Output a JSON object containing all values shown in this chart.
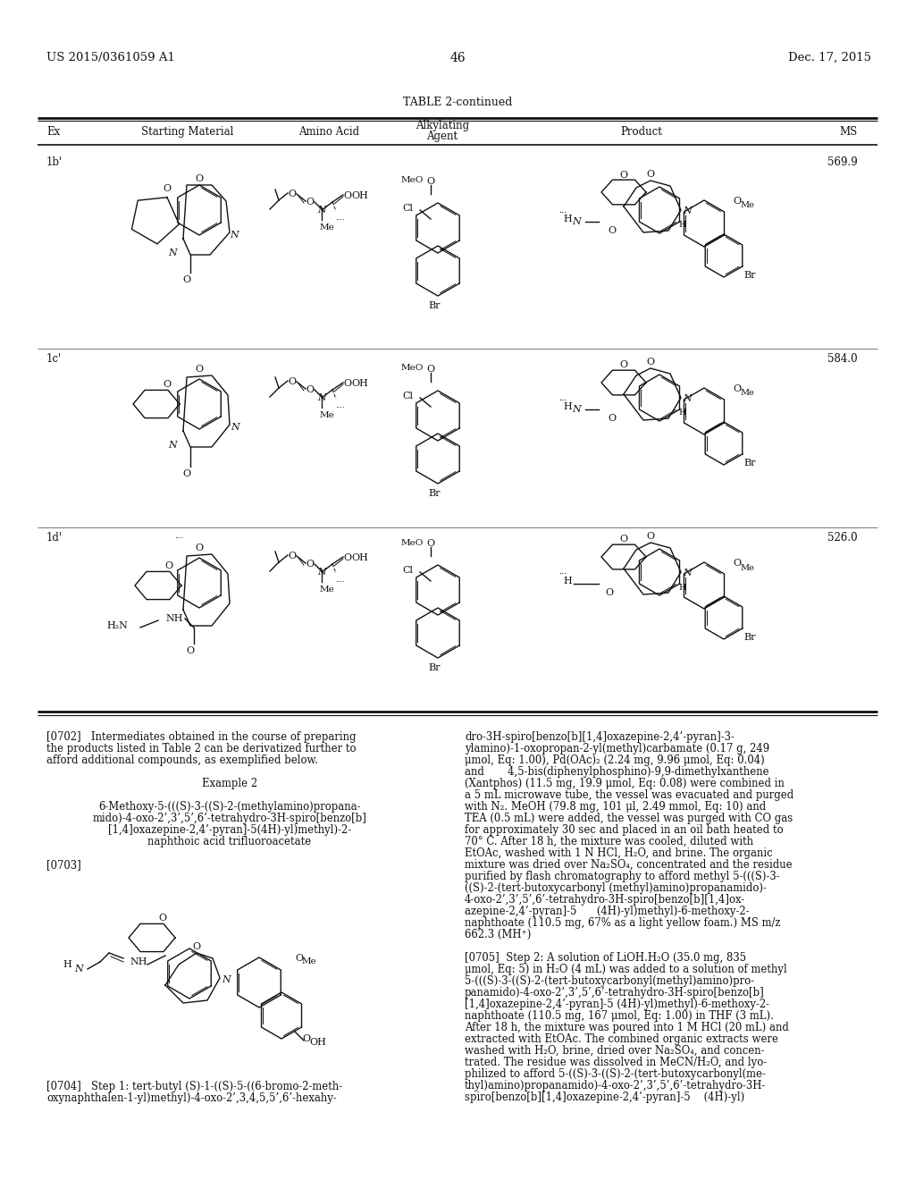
{
  "page_number": "46",
  "patent_number": "US 2015/0361059 A1",
  "patent_date": "Dec. 17, 2015",
  "table_title": "TABLE 2-continued",
  "col_headers": {
    "ex": "Ex",
    "sm": "Starting Material",
    "aa": "Amino Acid",
    "alk_top": "Alkylating",
    "alk_bot": "Agent",
    "prod": "Product",
    "ms": "MS"
  },
  "rows": [
    {
      "ex": "1b'",
      "ms": "569.9"
    },
    {
      "ex": "1c'",
      "ms": "584.0"
    },
    {
      "ex": "1d'",
      "ms": "526.0"
    }
  ],
  "body_left": [
    "[0702]   Intermediates obtained in the course of preparing",
    "the products listed in Table 2 can be derivatized further to",
    "afford additional compounds, as exemplified below.",
    "",
    "Example 2",
    "",
    "6-Methoxy-5-(((S)-3-((S)-2-(methylamino)propana-",
    "mido)-4-oxo-2’,3’,5’,6’-tetrahydro-3H-spiro[benzo[b]",
    "[1,4]oxazepine-2,4’-pyran]-5(4H)-yl)methyl)-2-",
    "naphthoic acid trifluoroacetate",
    "",
    "[0703]"
  ],
  "body_right": [
    "dro-3H-spiro[benzo[b][1,4]oxazepine-2,4’-pyran]-3-",
    "ylamino)-1-oxopropan-2-yl(methyl)carbamate (0.17 g, 249",
    "μmol, Eq: 1.00), Pd(OAc)₂ (2.24 mg, 9.96 μmol, Eq: 0.04)",
    "and       4,5-bis(diphenylphosphino)-9,9-dimethylxanthene",
    "(Xantphos) (11.5 mg, 19.9 μmol, Eq: 0.08) were combined in",
    "a 5 mL microwave tube, the vessel was evacuated and purged",
    "with N₂. MeOH (79.8 mg, 101 μl, 2.49 mmol, Eq: 10) and",
    "TEA (0.5 mL) were added, the vessel was purged with CO gas",
    "for approximately 30 sec and placed in an oil bath heated to",
    "70° C. After 18 h, the mixture was cooled, diluted with",
    "EtOAc, washed with 1 N HCl, H₂O, and brine. The organic",
    "mixture was dried over Na₂SO₄, concentrated and the residue",
    "purified by flash chromatography to afford methyl 5-(((S)-3-",
    "((S)-2-(tert-butoxycarbonyl (methyl)amino)propanamido)-",
    "4-oxo-2’,3’,5’,6’-tetrahydro-3H-spiro[benzo[b][1,4]ox-",
    "azepine-2,4’-pyran]-5      (4H)-yl)methyl)-6-methoxy-2-",
    "naphthoate (110.5 mg, 67% as a light yellow foam.) MS m/z",
    "662.3 (MH⁺)",
    "",
    "[0705]  Step 2: A solution of LiOH.H₂O (35.0 mg, 835",
    "μmol, Eq: 5) in H₂O (4 mL) was added to a solution of methyl",
    "5-(((S)-3-((S)-2-(tert-butoxycarbonyl(methyl)amino)pro-",
    "panamido)-4-oxo-2’,3’,5’,6’-tetrahydro-3H-spiro[benzo[b]",
    "[1,4]oxazepine-2,4’-pyran]-5 (4H)-yl)methyl)-6-methoxy-2-",
    "naphthoate (110.5 mg, 167 μmol, Eq: 1.00) in THF (3 mL).",
    "After 18 h, the mixture was poured into 1 M HCl (20 mL) and",
    "extracted with EtOAc. The combined organic extracts were",
    "washed with H₂O, brine, dried over Na₂SO₄, and concen-",
    "trated. The residue was dissolved in MeCN/H₂O, and lyo-",
    "philized to afford 5-((S)-3-((S)-2-(tert-butoxycarbonyl(me-",
    "thyl)amino)propanamido)-4-oxo-2’,3’,5’,6’-tetrahydro-3H-",
    "spiro[benzo[b][1,4]oxazepine-2,4’-pyran]-5    (4H)-yl)"
  ],
  "caption_0704_lines": [
    "[0704]   Step 1: tert-butyl (S)-1-((S)-5-((6-bromo-2-meth-",
    "oxynaphthalen-1-yl)methyl)-4-oxo-2’,3,4,5,5’,6’-hexahy-"
  ],
  "bg": "#ffffff"
}
